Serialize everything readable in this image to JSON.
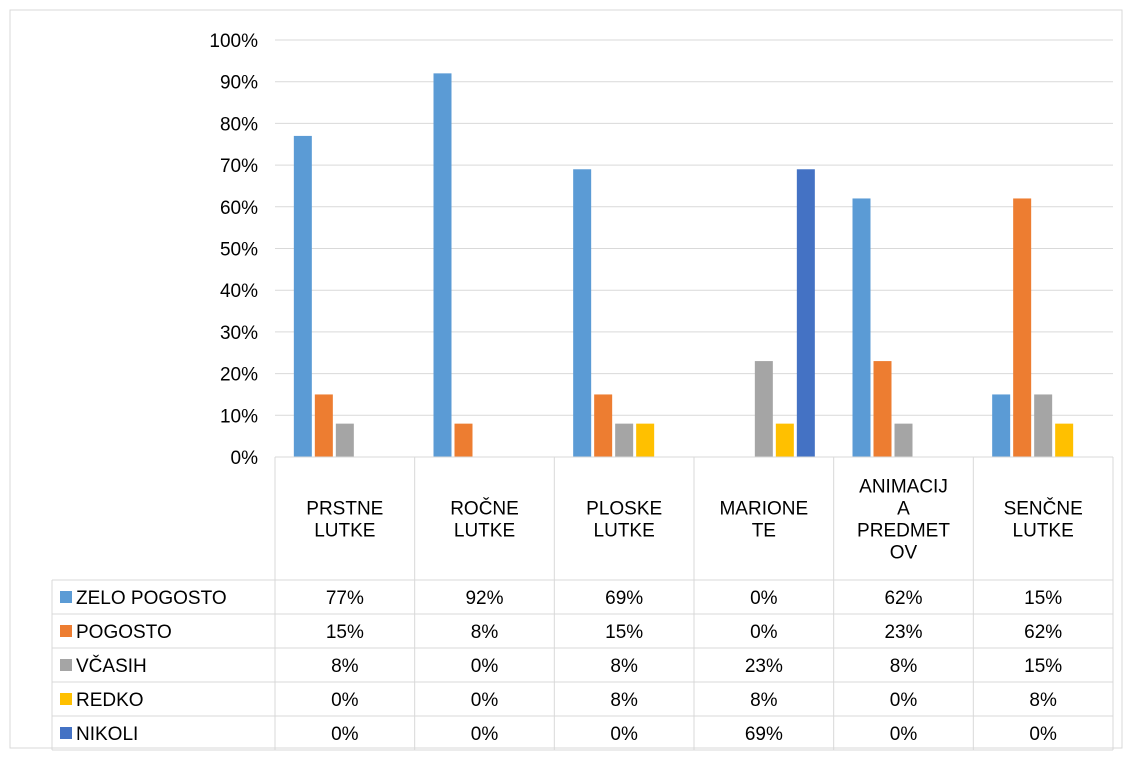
{
  "chart_data": {
    "type": "bar",
    "title": "",
    "xlabel": "",
    "ylabel": "",
    "ylim": [
      0,
      100
    ],
    "y_ticks": [
      "0%",
      "10%",
      "20%",
      "30%",
      "40%",
      "50%",
      "60%",
      "70%",
      "80%",
      "90%",
      "100%"
    ],
    "grid": true,
    "legend_placement": "data-table-left",
    "categories": [
      [
        "PRSTNE",
        "LUTKE"
      ],
      [
        "ROČNE",
        "LUTKE"
      ],
      [
        "PLOSKE",
        "LUTKE"
      ],
      [
        "MARIONE",
        "TE"
      ],
      [
        "ANIMACIJ",
        "A",
        "PREDMET",
        "OV"
      ],
      [
        "SENČNE",
        "LUTKE"
      ]
    ],
    "series": [
      {
        "name": "ZELO POGOSTO",
        "color": "#5B9BD5",
        "values": [
          77,
          92,
          69,
          0,
          62,
          15
        ],
        "labels": [
          "77%",
          "92%",
          "69%",
          "0%",
          "62%",
          "15%"
        ]
      },
      {
        "name": "POGOSTO",
        "color": "#ED7D31",
        "values": [
          15,
          8,
          15,
          0,
          23,
          62
        ],
        "labels": [
          "15%",
          "8%",
          "15%",
          "0%",
          "23%",
          "62%"
        ]
      },
      {
        "name": "VČASIH",
        "color": "#A5A5A5",
        "values": [
          8,
          0,
          8,
          23,
          8,
          15
        ],
        "labels": [
          "8%",
          "0%",
          "8%",
          "23%",
          "8%",
          "15%"
        ]
      },
      {
        "name": "REDKO",
        "color": "#FFC000",
        "values": [
          0,
          0,
          8,
          8,
          0,
          8
        ],
        "labels": [
          "0%",
          "0%",
          "8%",
          "8%",
          "0%",
          "8%"
        ]
      },
      {
        "name": "NIKOLI",
        "color": "#4472C4",
        "values": [
          0,
          0,
          0,
          69,
          0,
          0
        ],
        "labels": [
          "0%",
          "0%",
          "0%",
          "69%",
          "0%",
          "0%"
        ]
      }
    ]
  }
}
